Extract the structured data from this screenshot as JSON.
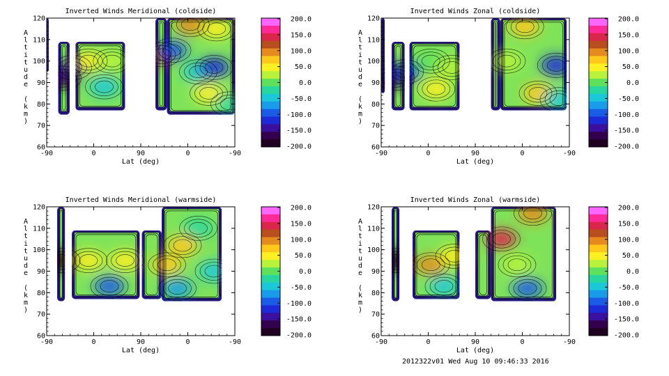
{
  "footer": "2012322v01 Wed Aug 10 09:46:33 2016",
  "colorbar": {
    "ticks": [
      "200.0",
      "150.0",
      "100.0",
      "50.0",
      "0.0",
      "-50.0",
      "-100.0",
      "-150.0",
      "-200.0"
    ],
    "colors": [
      "#ff66ff",
      "#ff2a9a",
      "#d9264a",
      "#b84d1e",
      "#e58a1f",
      "#ffc81a",
      "#fff024",
      "#b8f23a",
      "#5fe05c",
      "#29d6a0",
      "#1ac8d8",
      "#189be8",
      "#1a5ce6",
      "#1d2bd6",
      "#3b109e",
      "#33004d",
      "#200020"
    ]
  },
  "chart_data": [
    {
      "type": "heatmap",
      "title": "Inverted Winds Meridional (coldside)",
      "xlabel": "Lat (deg)",
      "ylabel": "Altitude (km)",
      "x_ticks": [
        "-90",
        "0",
        "90",
        "0",
        "-90"
      ],
      "y_ticks": [
        "60",
        "70",
        "80",
        "90",
        "100",
        "110",
        "120"
      ],
      "ylim": [
        60,
        120
      ],
      "zlim": [
        -200,
        200
      ],
      "regions": [
        {
          "x": [
            -90,
            -86
          ],
          "y": [
            95,
            120
          ]
        },
        {
          "x": [
            -68,
            -46
          ],
          "y": [
            75,
            109
          ]
        },
        {
          "x": [
            -35,
            60
          ],
          "y": [
            77,
            109
          ]
        },
        {
          "x": [
            118,
            140
          ],
          "y": [
            77,
            120
          ]
        },
        {
          "x": [
            140,
            270
          ],
          "y": [
            75,
            120
          ]
        }
      ],
      "features": [
        {
          "lat": -60,
          "alt": 92,
          "value": -180
        },
        {
          "lat": -40,
          "alt": 97,
          "value": -140
        },
        {
          "lat": -10,
          "alt": 100,
          "value": 40
        },
        {
          "lat": 20,
          "alt": 88,
          "value": -60
        },
        {
          "lat": 35,
          "alt": 100,
          "value": 30
        },
        {
          "lat": 130,
          "alt": 103,
          "value": 120
        },
        {
          "lat": 150,
          "alt": 105,
          "value": -110
        },
        {
          "lat": 185,
          "alt": 117,
          "value": 90
        },
        {
          "lat": 200,
          "alt": 95,
          "value": -40
        },
        {
          "lat": 230,
          "alt": 97,
          "value": -120
        },
        {
          "lat": 235,
          "alt": 115,
          "value": 60
        },
        {
          "lat": 220,
          "alt": 85,
          "value": 60
        },
        {
          "lat": 260,
          "alt": 80,
          "value": -30
        }
      ]
    },
    {
      "type": "heatmap",
      "title": "Inverted Winds Zonal (coldside)",
      "xlabel": "Lat (deg)",
      "ylabel": "Altitude (km)",
      "x_ticks": [
        "-90",
        "0",
        "90",
        "0",
        "-90"
      ],
      "y_ticks": [
        "60",
        "70",
        "80",
        "90",
        "100",
        "110",
        "120"
      ],
      "ylim": [
        60,
        120
      ],
      "zlim": [
        -200,
        200
      ],
      "regions": [
        {
          "x": [
            -90,
            -83
          ],
          "y": [
            85,
            120
          ]
        },
        {
          "x": [
            -70,
            -45
          ],
          "y": [
            77,
            109
          ]
        },
        {
          "x": [
            -36,
            60
          ],
          "y": [
            77,
            109
          ]
        },
        {
          "x": [
            120,
            138
          ],
          "y": [
            77,
            120
          ]
        },
        {
          "x": [
            138,
            265
          ],
          "y": [
            77,
            120
          ]
        }
      ],
      "features": [
        {
          "lat": -62,
          "alt": 92,
          "value": -170
        },
        {
          "lat": -45,
          "alt": 95,
          "value": -120
        },
        {
          "lat": 5,
          "alt": 100,
          "value": 10
        },
        {
          "lat": 15,
          "alt": 87,
          "value": 60
        },
        {
          "lat": 45,
          "alt": 97,
          "value": 30
        },
        {
          "lat": 150,
          "alt": 100,
          "value": 30
        },
        {
          "lat": 185,
          "alt": 116,
          "value": 70
        },
        {
          "lat": 245,
          "alt": 98,
          "value": -120
        },
        {
          "lat": 210,
          "alt": 85,
          "value": 70
        },
        {
          "lat": 250,
          "alt": 82,
          "value": -40
        }
      ]
    },
    {
      "type": "heatmap",
      "title": "Inverted Winds Meridional (warmside)",
      "xlabel": "Lat (deg)",
      "ylabel": "Altitude (km)",
      "x_ticks": [
        "-90",
        "0",
        "90",
        "0",
        "-90"
      ],
      "y_ticks": [
        "60",
        "70",
        "80",
        "90",
        "100",
        "110",
        "120"
      ],
      "ylim": [
        60,
        120
      ],
      "zlim": [
        -200,
        200
      ],
      "regions": [
        {
          "x": [
            -70,
            -55
          ],
          "y": [
            76,
            120
          ]
        },
        {
          "x": [
            -42,
            88
          ],
          "y": [
            77,
            109
          ]
        },
        {
          "x": [
            92,
            130
          ],
          "y": [
            77,
            109
          ]
        },
        {
          "x": [
            130,
            245
          ],
          "y": [
            76,
            120
          ]
        }
      ],
      "features": [
        {
          "lat": -62,
          "alt": 95,
          "value": -190
        },
        {
          "lat": -10,
          "alt": 95,
          "value": 40
        },
        {
          "lat": 60,
          "alt": 95,
          "value": 50
        },
        {
          "lat": 30,
          "alt": 83,
          "value": -90
        },
        {
          "lat": 140,
          "alt": 93,
          "value": 80
        },
        {
          "lat": 170,
          "alt": 102,
          "value": 80
        },
        {
          "lat": 200,
          "alt": 110,
          "value": -20
        },
        {
          "lat": 160,
          "alt": 82,
          "value": -80
        },
        {
          "lat": 230,
          "alt": 90,
          "value": -40
        }
      ]
    },
    {
      "type": "heatmap",
      "title": "Inverted Winds Zonal (warmside)",
      "xlabel": "Lat (deg)",
      "ylabel": "Altitude (km)",
      "x_ticks": [
        "-90",
        "0",
        "90",
        "0",
        "-90"
      ],
      "y_ticks": [
        "60",
        "70",
        "80",
        "90",
        "100",
        "110",
        "120"
      ],
      "ylim": [
        60,
        120
      ],
      "zlim": [
        -200,
        200
      ],
      "regions": [
        {
          "x": [
            -70,
            -55
          ],
          "y": [
            76,
            120
          ]
        },
        {
          "x": [
            -30,
            60
          ],
          "y": [
            77,
            109
          ]
        },
        {
          "x": [
            90,
            120
          ],
          "y": [
            77,
            109
          ]
        },
        {
          "x": [
            120,
            245
          ],
          "y": [
            76,
            120
          ]
        }
      ],
      "features": [
        {
          "lat": -62,
          "alt": 95,
          "value": -190
        },
        {
          "lat": 5,
          "alt": 93,
          "value": 110
        },
        {
          "lat": 50,
          "alt": 97,
          "value": 40
        },
        {
          "lat": 30,
          "alt": 83,
          "value": -60
        },
        {
          "lat": 140,
          "alt": 105,
          "value": 140
        },
        {
          "lat": 200,
          "alt": 117,
          "value": 100
        },
        {
          "lat": 170,
          "alt": 93,
          "value": 30
        },
        {
          "lat": 190,
          "alt": 82,
          "value": -90
        }
      ]
    }
  ]
}
